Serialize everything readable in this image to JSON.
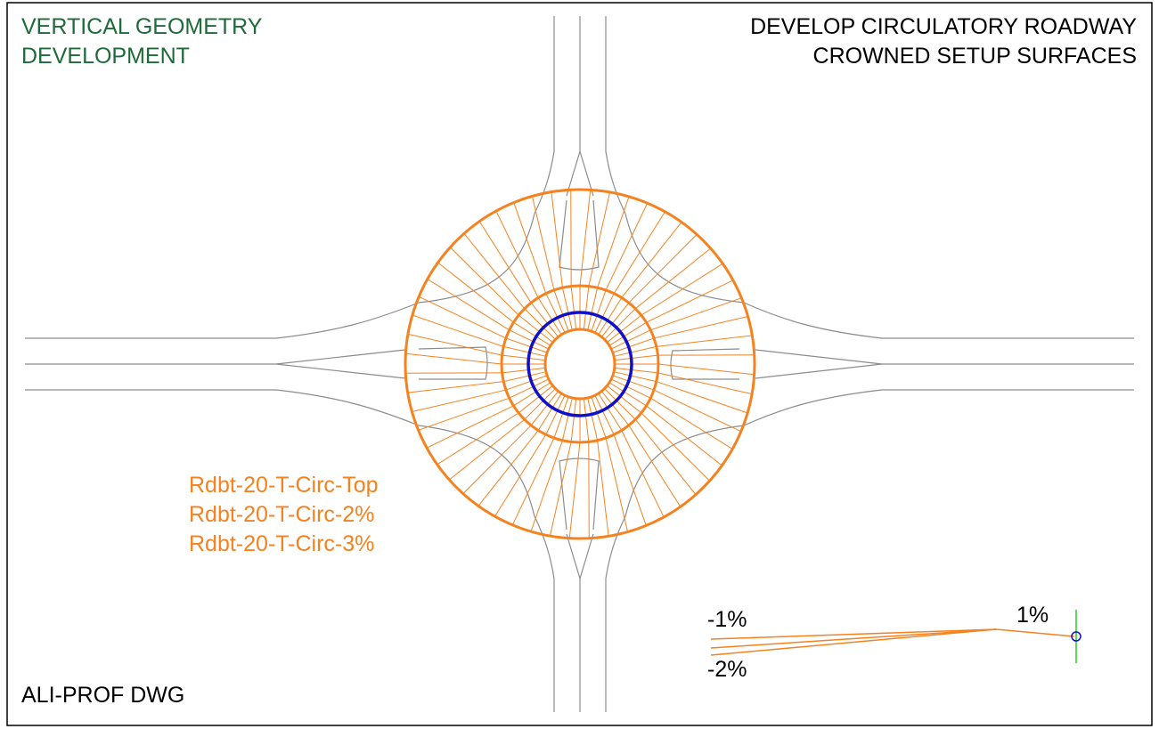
{
  "title_left": {
    "line1": "VERTICAL GEOMETRY",
    "line2": "DEVELOPMENT"
  },
  "title_right": {
    "line1": "DEVELOP CIRCULATORY ROADWAY",
    "line2": "CROWNED SETUP SURFACES"
  },
  "footer": "ALI-PROF DWG",
  "surfaces": {
    "top": "Rdbt-20-T-Circ-Top",
    "two": "Rdbt-20-T-Circ-2%",
    "three": "Rdbt-20-T-Circ-3%"
  },
  "slope_labels": {
    "neg1": "-1%",
    "neg2": "-2%",
    "pos1": "1%"
  },
  "colors": {
    "green_text": "#1e6b3a",
    "orange": "#f5821f",
    "blue": "#1010c8",
    "gray": "#8c8c8c",
    "marker_green": "#22cc22"
  }
}
